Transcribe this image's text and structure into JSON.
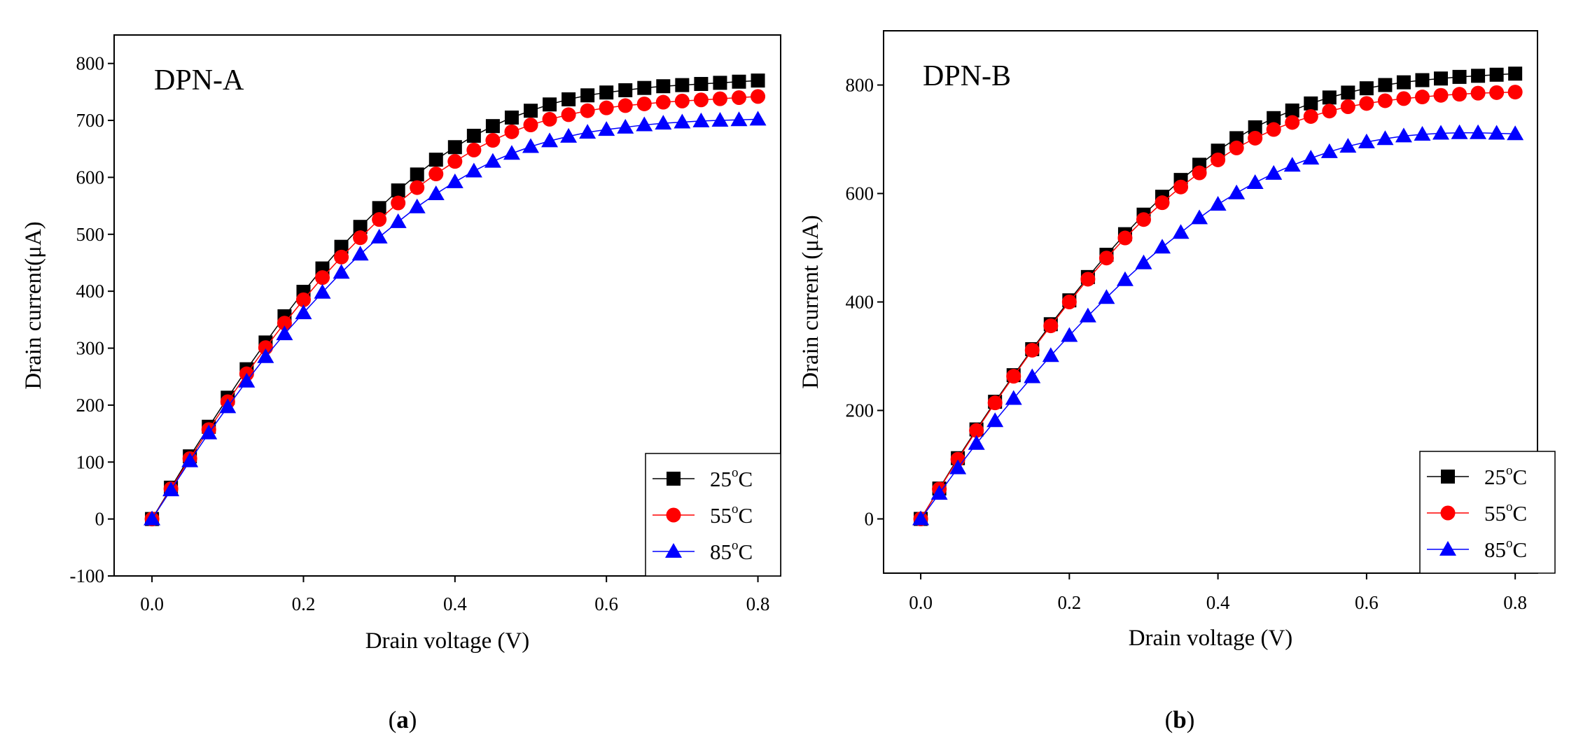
{
  "figure": {
    "captions": [
      {
        "open": "(",
        "letter": "a",
        "close": ")"
      },
      {
        "open": "(",
        "letter": "b",
        "close": ")"
      }
    ]
  },
  "chart_data": [
    {
      "type": "line",
      "title": "DPN-A",
      "xlabel": "Drain voltage (V)",
      "ylabel": "Drain current(μA)",
      "xlim": [
        -0.05,
        0.83
      ],
      "ylim": [
        -100,
        850
      ],
      "xticks": [
        0.0,
        0.2,
        0.4,
        0.6,
        0.8
      ],
      "xtick_labels": [
        "0.0",
        "0.2",
        "0.4",
        "0.6",
        "0.8"
      ],
      "yticks": [
        -100,
        0,
        100,
        200,
        300,
        400,
        500,
        600,
        700,
        800
      ],
      "ytick_labels": [
        "-100",
        "0",
        "100",
        "200",
        "300",
        "400",
        "500",
        "600",
        "700",
        "800"
      ],
      "legend_position": "bottom-right",
      "x": [
        0.0,
        0.025,
        0.05,
        0.075,
        0.1,
        0.125,
        0.15,
        0.175,
        0.2,
        0.225,
        0.25,
        0.275,
        0.3,
        0.325,
        0.35,
        0.375,
        0.4,
        0.425,
        0.45,
        0.475,
        0.5,
        0.525,
        0.55,
        0.575,
        0.6,
        0.625,
        0.65,
        0.675,
        0.7,
        0.725,
        0.75,
        0.775,
        0.8
      ],
      "series": [
        {
          "name": "25",
          "unit": "oC",
          "color": "#000000",
          "marker": "square",
          "values": [
            0,
            55,
            110,
            162,
            213,
            263,
            310,
            356,
            399,
            440,
            478,
            513,
            546,
            577,
            605,
            631,
            653,
            673,
            690,
            705,
            717,
            728,
            737,
            744,
            749,
            753,
            757,
            760,
            762,
            764,
            766,
            768,
            770
          ]
        },
        {
          "name": "55",
          "unit": "oC",
          "color": "#ff0000",
          "marker": "circle",
          "values": [
            0,
            53,
            106,
            157,
            206,
            255,
            301,
            344,
            385,
            424,
            460,
            494,
            526,
            555,
            582,
            606,
            628,
            648,
            665,
            680,
            692,
            702,
            710,
            717,
            722,
            726,
            729,
            732,
            734,
            736,
            738,
            740,
            742
          ]
        },
        {
          "name": "85",
          "unit": "oC",
          "color": "#0000ff",
          "marker": "triangle",
          "values": [
            0,
            51,
            102,
            151,
            197,
            242,
            285,
            325,
            362,
            398,
            433,
            465,
            495,
            522,
            548,
            571,
            592,
            611,
            628,
            642,
            654,
            664,
            672,
            679,
            684,
            688,
            692,
            695,
            697,
            699,
            700,
            701,
            702
          ]
        }
      ]
    },
    {
      "type": "line",
      "title": "DPN-B",
      "xlabel": "Drain voltage (V)",
      "ylabel": "Drain current (μA)",
      "xlim": [
        -0.05,
        0.83
      ],
      "ylim": [
        -100,
        900
      ],
      "xticks": [
        0.0,
        0.2,
        0.4,
        0.6,
        0.8
      ],
      "xtick_labels": [
        "0.0",
        "0.2",
        "0.4",
        "0.6",
        "0.8"
      ],
      "yticks": [
        0,
        200,
        400,
        600,
        800
      ],
      "ytick_labels": [
        "0",
        "200",
        "400",
        "600",
        "800"
      ],
      "legend_position": "bottom-right",
      "x": [
        0.0,
        0.025,
        0.05,
        0.075,
        0.1,
        0.125,
        0.15,
        0.175,
        0.2,
        0.225,
        0.25,
        0.275,
        0.3,
        0.325,
        0.35,
        0.375,
        0.4,
        0.425,
        0.45,
        0.475,
        0.5,
        0.525,
        0.55,
        0.575,
        0.6,
        0.625,
        0.65,
        0.675,
        0.7,
        0.725,
        0.75,
        0.775,
        0.8
      ],
      "series": [
        {
          "name": "25",
          "unit": "oC",
          "color": "#000000",
          "marker": "square",
          "values": [
            0,
            56,
            112,
            165,
            216,
            265,
            313,
            359,
            403,
            446,
            487,
            525,
            561,
            594,
            625,
            653,
            679,
            702,
            722,
            739,
            753,
            766,
            777,
            786,
            794,
            800,
            805,
            809,
            812,
            815,
            817,
            819,
            821
          ]
        },
        {
          "name": "55",
          "unit": "oC",
          "color": "#ff0000",
          "marker": "circle",
          "values": [
            0,
            55,
            110,
            163,
            214,
            263,
            311,
            356,
            400,
            442,
            481,
            518,
            552,
            583,
            612,
            638,
            662,
            684,
            702,
            718,
            731,
            742,
            752,
            760,
            766,
            771,
            775,
            778,
            781,
            783,
            785,
            786,
            787
          ]
        },
        {
          "name": "85",
          "unit": "oC",
          "color": "#0000ff",
          "marker": "triangle",
          "values": [
            0,
            47,
            94,
            139,
            181,
            222,
            262,
            301,
            338,
            374,
            408,
            441,
            472,
            501,
            528,
            555,
            580,
            601,
            620,
            637,
            652,
            665,
            677,
            687,
            695,
            701,
            706,
            709,
            711,
            712,
            712,
            711,
            710
          ]
        }
      ]
    }
  ]
}
